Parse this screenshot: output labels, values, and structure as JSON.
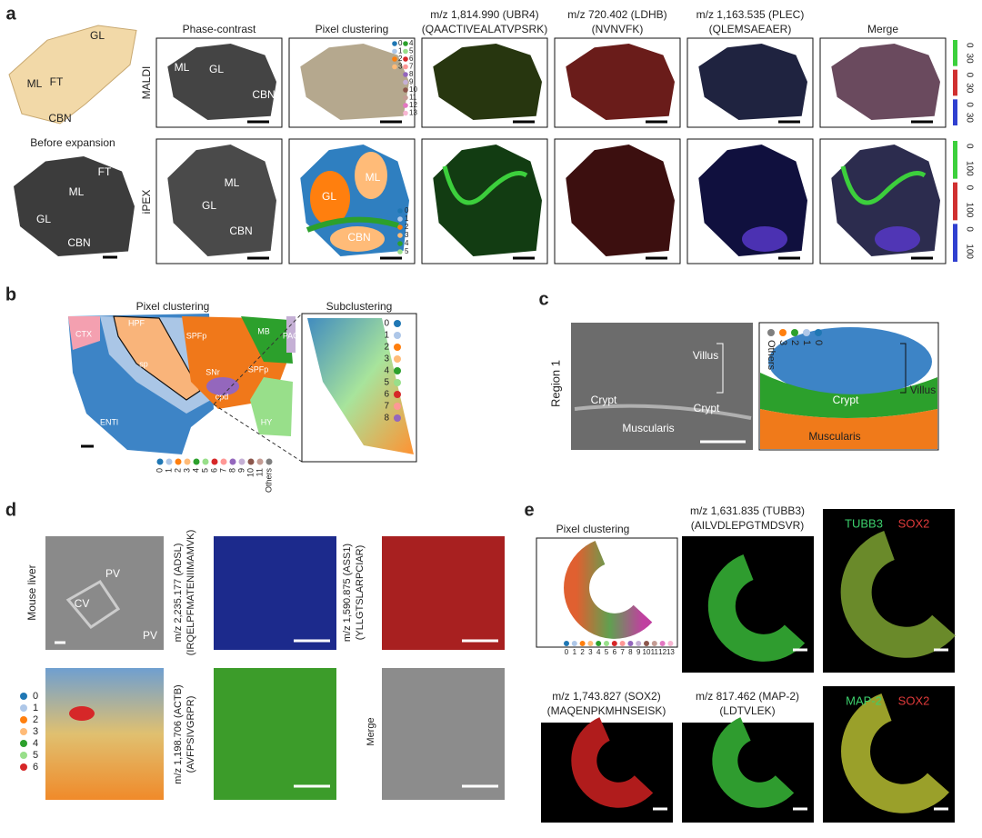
{
  "panel_a": {
    "label": "a",
    "schematic": {
      "gl": "GL",
      "ml": "ML",
      "ft": "FT",
      "cbn": "CBN"
    },
    "before_title": "Before expansion",
    "before_labels": {
      "ft": "FT",
      "ml": "ML",
      "gl": "GL",
      "cbn": "CBN"
    },
    "columns": [
      {
        "title": "Phase-contrast"
      },
      {
        "title": "Pixel clustering"
      },
      {
        "title": "m/z 1,814.990 (UBR4)",
        "subtitle": "(QAACTIVEALATVPSRK)"
      },
      {
        "title": "m/z 720.402 (LDHB)",
        "subtitle": "(NVNVFK)"
      },
      {
        "title": "m/z 1,163.535 (PLEC)",
        "subtitle": "(QLEMSAEAER)"
      },
      {
        "title": "Merge"
      }
    ],
    "rows": [
      "MALDI",
      "iPEX"
    ],
    "maldi_phase_labels": [
      "ML",
      "GL",
      "CBN"
    ],
    "ipex_phase_labels": [
      "ML",
      "GL",
      "CBN"
    ],
    "ipex_cluster_labels": [
      "GL",
      "ML",
      "CBN"
    ],
    "maldi_legend": [
      "0",
      "1",
      "2",
      "3",
      "4",
      "5",
      "6",
      "7",
      "8",
      "9",
      "10",
      "11",
      "12",
      "13"
    ],
    "ipex_legend": [
      "0",
      "1",
      "2",
      "3",
      "4",
      "5"
    ],
    "maldi_colorbar": [
      "0",
      "30",
      "0",
      "30",
      "0",
      "30"
    ],
    "ipex_colorbar": [
      "0",
      "100",
      "0",
      "100",
      "0",
      "100"
    ]
  },
  "panel_b": {
    "label": "b",
    "title_left": "Pixel clustering",
    "title_right": "Subclustering",
    "regions": [
      "CTX",
      "HPF",
      "SPFp",
      "MB",
      "PAG",
      "SNr",
      "SPFp",
      "cpd",
      "sp",
      "ENTl",
      "HY"
    ],
    "sub_legend": [
      "0",
      "1",
      "2",
      "3",
      "4",
      "5",
      "6",
      "7",
      "8"
    ],
    "legend": [
      "0",
      "1",
      "2",
      "3",
      "4",
      "5",
      "6",
      "7",
      "8",
      "9",
      "10",
      "11",
      "Others"
    ]
  },
  "panel_c": {
    "label": "c",
    "row_label": "Region 1",
    "left_labels": [
      "Villus",
      "Crypt",
      "Crypt",
      "Muscularis"
    ],
    "right_labels": [
      "Crypt",
      "Villus",
      "Muscularis"
    ],
    "legend": [
      "0",
      "1",
      "2",
      "3",
      "Others"
    ]
  },
  "panel_d": {
    "label": "d",
    "tissue": "Mouse liver",
    "liver_labels": [
      "PV",
      "CV",
      "PV"
    ],
    "legend": [
      "0",
      "1",
      "2",
      "3",
      "4",
      "5",
      "6"
    ],
    "adsl": {
      "title": "m/z 2,235.177 (ADSL)",
      "subtitle": "(IRQELPFMATENIIMAMVK)"
    },
    "ass1": {
      "title": "m/z 1,590.875 (ASS1)",
      "subtitle": "(YLLGTSLARPCIAR)"
    },
    "actb": {
      "title": "m/z 1,198.706 (ACTB)",
      "subtitle": "(AVFPSIVGRPR)"
    },
    "merge": "Merge"
  },
  "panel_e": {
    "label": "e",
    "cluster_title": "Pixel clustering",
    "legend": [
      "0",
      "1",
      "2",
      "3",
      "4",
      "5",
      "6",
      "7",
      "8",
      "9",
      "10",
      "11",
      "12",
      "13"
    ],
    "tubb3": {
      "title": "m/z 1,631.835 (TUBB3)",
      "subtitle": "(AILVDLEPGTMDSVR)"
    },
    "merge1": [
      "TUBB3",
      "SOX2"
    ],
    "sox2": {
      "title": "m/z 1,743.827 (SOX2)",
      "subtitle": "(MAQENPKMHNSEISK)"
    },
    "map2": {
      "title": "m/z 817.462 (MAP-2)",
      "subtitle": "(LDTVLEK)"
    },
    "merge2": [
      "MAP-2",
      "SOX2"
    ]
  }
}
